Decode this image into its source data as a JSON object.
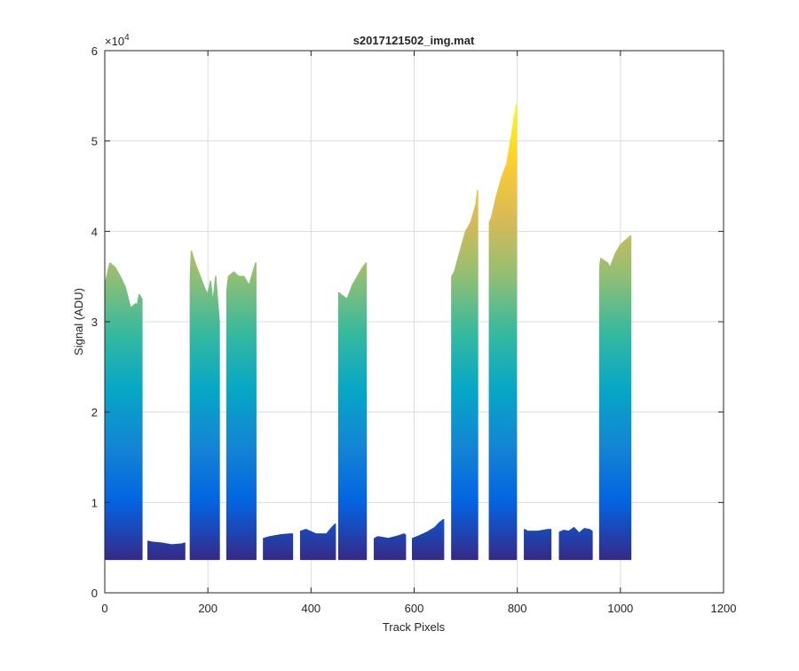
{
  "chart_data": {
    "type": "area",
    "title": "s2017121502_img.mat",
    "xlabel": "Track Pixels",
    "ylabel": "Signal (ADU)",
    "xlim": [
      0,
      1200
    ],
    "ylim": [
      0,
      60000
    ],
    "xticks": [
      0,
      200,
      400,
      600,
      800,
      1000,
      1200
    ],
    "yticks": [
      0,
      1,
      2,
      3,
      4,
      5,
      6
    ],
    "y_exponent_label": "×10",
    "y_exponent": "4",
    "grid": true,
    "colormap": "parula",
    "colormap_stops": [
      "#352a87",
      "#0363e1",
      "#1485d4",
      "#06a7c6",
      "#38b99e",
      "#92bf73",
      "#d9ba56",
      "#fcce2e",
      "#f9fb0e"
    ],
    "baseline": 3700,
    "segments": [
      {
        "x": [
          2,
          10,
          20,
          30,
          40,
          50,
          60,
          63,
          67,
          72
        ],
        "y": [
          34500,
          36500,
          36000,
          35000,
          33800,
          31500,
          32000,
          31800,
          33000,
          32500
        ]
      },
      {
        "x": [
          84,
          92,
          110,
          130,
          150,
          155
        ],
        "y": [
          5700,
          5600,
          5500,
          5300,
          5400,
          5500
        ]
      },
      {
        "x": [
          166,
          168,
          175,
          185,
          195,
          200,
          205,
          210,
          215,
          222
        ],
        "y": [
          35000,
          37800,
          36500,
          35000,
          33500,
          33000,
          34500,
          32000,
          35000,
          30000
        ]
      },
      {
        "x": [
          237,
          240,
          250,
          260,
          270,
          280,
          290,
          293
        ],
        "y": [
          33500,
          35000,
          35500,
          35000,
          35000,
          34000,
          36000,
          36500
        ]
      },
      {
        "x": [
          308,
          320,
          340,
          360,
          364
        ],
        "y": [
          6000,
          6200,
          6400,
          6500,
          6500
        ]
      },
      {
        "x": [
          380,
          390,
          410,
          430,
          440,
          447
        ],
        "y": [
          6800,
          7000,
          6500,
          6500,
          7200,
          7600
        ]
      },
      {
        "x": [
          454,
          458,
          470,
          480,
          490,
          500,
          507
        ],
        "y": [
          33200,
          33000,
          32500,
          34000,
          35000,
          36000,
          36500
        ]
      },
      {
        "x": [
          523,
          530,
          550,
          570,
          580,
          583
        ],
        "y": [
          6000,
          6200,
          6000,
          6300,
          6500,
          6400
        ]
      },
      {
        "x": [
          597,
          610,
          625,
          640,
          650,
          657
        ],
        "y": [
          6000,
          6300,
          6700,
          7200,
          7800,
          8100
        ]
      },
      {
        "x": [
          673,
          678,
          690,
          700,
          710,
          720,
          723
        ],
        "y": [
          35000,
          35500,
          38000,
          40000,
          41000,
          43000,
          44500
        ]
      },
      {
        "x": [
          746,
          750,
          760,
          770,
          780,
          790,
          798
        ],
        "y": [
          41000,
          41500,
          44000,
          46000,
          47500,
          51000,
          54000
        ]
      },
      {
        "x": [
          814,
          820,
          840,
          860,
          865
        ],
        "y": [
          7000,
          6800,
          6800,
          7000,
          7000
        ]
      },
      {
        "x": [
          882,
          890,
          900,
          910,
          920,
          930,
          940,
          945
        ],
        "y": [
          6700,
          6900,
          6800,
          7200,
          6600,
          7100,
          7000,
          6800
        ]
      },
      {
        "x": [
          960,
          962,
          975,
          980,
          990,
          1000,
          1010,
          1020
        ],
        "y": [
          36000,
          37000,
          36500,
          36000,
          37500,
          38500,
          39000,
          39500
        ]
      }
    ]
  }
}
